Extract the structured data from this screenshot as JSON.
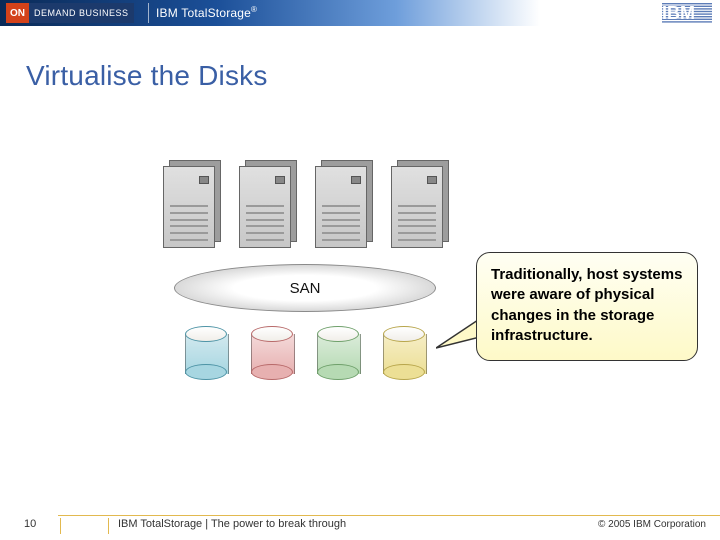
{
  "header": {
    "badge_on": "ON",
    "badge_rest": "DEMAND BUSINESS",
    "product_title_html": "IBM TotalStorage®",
    "separator_color": "#ffffff",
    "gradient_start": "#0a2a57",
    "gradient_mid": "#1b4f98",
    "gradient_light": "#6e9edb",
    "logo_stripe_color": "#5d7db8"
  },
  "slide": {
    "title": "Virtualise the Disks",
    "title_color": "#3a5fa5",
    "title_fontsize": 28
  },
  "diagram": {
    "server_count": 4,
    "server_fill_light": "#e0e0e0",
    "server_fill_dark": "#c7c7c7",
    "server_shadow": "#9d9d9d",
    "server_border": "#666666",
    "san_label": "SAN",
    "san_label_fontsize": 15,
    "san_ellipse_border": "#8a8a8a",
    "disks": [
      {
        "fill_top": "#d2e9ef",
        "fill_bottom": "#a7d6e1",
        "stroke": "#4e94a6"
      },
      {
        "fill_top": "#f4dada",
        "fill_bottom": "#e7b0b0",
        "stroke": "#b86a6a"
      },
      {
        "fill_top": "#dbecda",
        "fill_bottom": "#b6dab3",
        "stroke": "#6fa06b"
      },
      {
        "fill_top": "#f6eec7",
        "fill_bottom": "#ecdf95",
        "stroke": "#b8a64c"
      }
    ]
  },
  "callout": {
    "text": "Traditionally, host systems were aware of physical changes in the storage infrastructure.",
    "bg_top": "#fffff3",
    "bg_bottom": "#fef9c8",
    "border": "#333333",
    "fontsize": 15
  },
  "footer": {
    "page_number": "10",
    "tagline": "IBM TotalStorage  |  The power to break through",
    "copyright": "© 2005 IBM Corporation",
    "line_color": "#e2b94f"
  }
}
